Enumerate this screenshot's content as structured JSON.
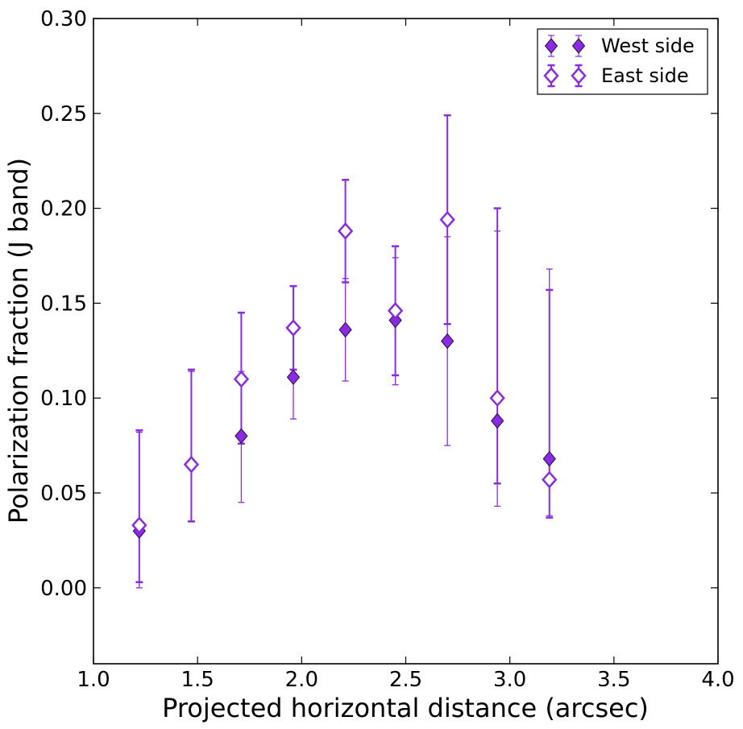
{
  "chart_data": {
    "type": "scatter",
    "title": "",
    "xlabel": "Projected horizontal distance (arcsec)",
    "ylabel": "Polarization fraction (J band)",
    "xlim": [
      1.0,
      4.0
    ],
    "ylim": [
      -0.04,
      0.3
    ],
    "xticks": [
      1.0,
      1.5,
      2.0,
      2.5,
      3.0,
      3.5,
      4.0
    ],
    "xtick_labels": [
      "1.0",
      "1.5",
      "2.0",
      "2.5",
      "3.0",
      "3.5",
      "4.0"
    ],
    "yticks": [
      0.0,
      0.05,
      0.1,
      0.15,
      0.2,
      0.25,
      0.3
    ],
    "ytick_labels": [
      "0.00",
      "0.05",
      "0.10",
      "0.15",
      "0.20",
      "0.25",
      "0.30"
    ],
    "grid": false,
    "legend_position": "top-right",
    "series": [
      {
        "name": "West side",
        "marker": "filled-diamond",
        "color": "#8a2be2",
        "x": [
          1.22,
          1.47,
          1.71,
          1.96,
          2.21,
          2.45,
          2.7,
          2.94,
          3.19
        ],
        "y": [
          0.03,
          0.065,
          0.08,
          0.111,
          0.136,
          0.141,
          0.13,
          0.088,
          0.068
        ],
        "yerr_low": [
          0.0,
          0.035,
          0.045,
          0.089,
          0.109,
          0.107,
          0.075,
          0.043,
          0.038
        ],
        "yerr_high": [
          0.082,
          0.114,
          0.114,
          0.115,
          0.163,
          0.174,
          0.185,
          0.188,
          0.168
        ]
      },
      {
        "name": "East side",
        "marker": "open-diamond",
        "color": "#8a2be2",
        "x": [
          1.22,
          1.47,
          1.71,
          1.96,
          2.21,
          2.45,
          2.7,
          2.94,
          3.19
        ],
        "y": [
          0.033,
          0.065,
          0.11,
          0.137,
          0.188,
          0.146,
          0.194,
          0.1,
          0.057
        ],
        "yerr_low": [
          0.003,
          0.035,
          0.076,
          0.115,
          0.161,
          0.112,
          0.139,
          0.055,
          0.037
        ],
        "yerr_high": [
          0.083,
          0.115,
          0.145,
          0.159,
          0.215,
          0.18,
          0.249,
          0.2,
          0.157
        ]
      }
    ]
  }
}
